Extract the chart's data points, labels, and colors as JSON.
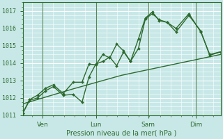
{
  "xlabel": "Pression niveau de la mer( hPa )",
  "background_color": "#c8e8e8",
  "grid_color": "#b0d8d8",
  "line_color": "#2d6a2d",
  "ylim": [
    1011,
    1017.5
  ],
  "yticks": [
    1011,
    1012,
    1013,
    1014,
    1015,
    1016,
    1017
  ],
  "day_labels": [
    "Ven",
    "Lun",
    "Sam",
    "Dim"
  ],
  "day_positions": [
    0.1,
    0.37,
    0.635,
    0.875
  ],
  "line1_x": [
    0.0,
    0.035,
    0.075,
    0.115,
    0.155,
    0.205,
    0.255,
    0.3,
    0.335,
    0.37,
    0.405,
    0.44,
    0.475,
    0.51,
    0.545,
    0.585,
    0.62,
    0.655,
    0.69,
    0.73,
    0.775,
    0.84,
    0.9,
    0.945,
    1.0
  ],
  "line1_y": [
    1011.1,
    1011.9,
    1012.15,
    1012.55,
    1012.75,
    1012.25,
    1012.9,
    1012.9,
    1013.95,
    1013.9,
    1014.5,
    1014.3,
    1015.1,
    1014.7,
    1014.1,
    1014.85,
    1016.55,
    1016.85,
    1016.5,
    1016.35,
    1016.0,
    1016.85,
    1015.8,
    1014.5,
    1014.65
  ],
  "line2_x": [
    0.0,
    0.035,
    0.075,
    0.115,
    0.155,
    0.205,
    0.255,
    0.3,
    0.335,
    0.37,
    0.405,
    0.44,
    0.475,
    0.51,
    0.545,
    0.585,
    0.62,
    0.655,
    0.69,
    0.73,
    0.775,
    0.84,
    0.9,
    0.945,
    1.0
  ],
  "line2_y": [
    1011.1,
    1011.85,
    1012.0,
    1012.4,
    1012.65,
    1012.15,
    1012.2,
    1011.75,
    1013.2,
    1013.95,
    1014.1,
    1014.35,
    1013.85,
    1014.65,
    1014.1,
    1015.4,
    1016.6,
    1016.95,
    1016.45,
    1016.35,
    1015.8,
    1016.75,
    1015.85,
    1014.45,
    1014.65
  ],
  "line3_x": [
    0.0,
    0.25,
    0.5,
    0.75,
    1.0
  ],
  "line3_y": [
    1011.65,
    1012.5,
    1013.3,
    1013.9,
    1014.5
  ]
}
